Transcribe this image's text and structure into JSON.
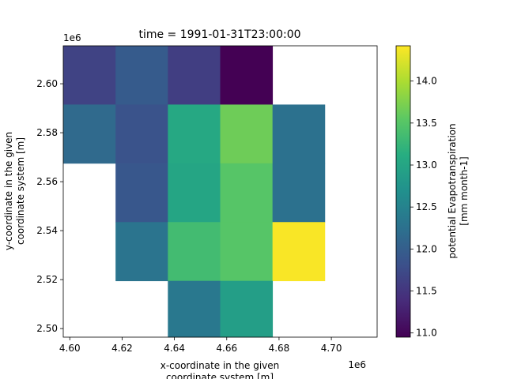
{
  "chart_data": {
    "type": "heatmap",
    "title": "time = 1991-01-31T23:00:00",
    "xlabel_lines": [
      "x-coordinate in the given",
      "coordinate system [m]"
    ],
    "ylabel_lines": [
      "y-coordinate in the given",
      "coordinate system [m]"
    ],
    "x_offset_label": "1e6",
    "y_offset_label": "1e6",
    "xlim": [
      4.5975,
      4.7175
    ],
    "ylim": [
      2.4965,
      2.6155
    ],
    "x_ticks": [
      4.6,
      4.62,
      4.64,
      4.66,
      4.68,
      4.7
    ],
    "x_tick_labels": [
      "4.60",
      "4.62",
      "4.64",
      "4.66",
      "4.68",
      "4.70"
    ],
    "y_ticks": [
      2.5,
      2.52,
      2.54,
      2.56,
      2.58,
      2.6
    ],
    "y_tick_labels": [
      "2.50",
      "2.52",
      "2.54",
      "2.56",
      "2.58",
      "2.60"
    ],
    "x_edges": [
      4.5975,
      4.6175,
      4.6375,
      4.6575,
      4.6775,
      4.6975,
      4.7175
    ],
    "y_edges": [
      2.6155,
      2.5915,
      2.5675,
      2.5435,
      2.5195,
      2.4965
    ],
    "values": [
      [
        11.65,
        11.95,
        11.6,
        10.95,
        null,
        null
      ],
      [
        12.15,
        11.85,
        13.05,
        13.65,
        12.25,
        null
      ],
      [
        null,
        11.9,
        13.0,
        13.5,
        12.25,
        null
      ],
      [
        null,
        12.3,
        13.35,
        13.5,
        14.4,
        null
      ],
      [
        null,
        null,
        12.35,
        12.9,
        null,
        null
      ]
    ],
    "colorbar": {
      "label_lines": [
        "potential Evapotranspiration",
        "[mm month-1]"
      ],
      "range": [
        10.95,
        14.42
      ],
      "ticks": [
        11.0,
        11.5,
        12.0,
        12.5,
        13.0,
        13.5,
        14.0
      ],
      "tick_labels": [
        "11.0",
        "11.5",
        "12.0",
        "12.5",
        "13.0",
        "13.5",
        "14.0"
      ],
      "colormap": "viridis"
    }
  }
}
